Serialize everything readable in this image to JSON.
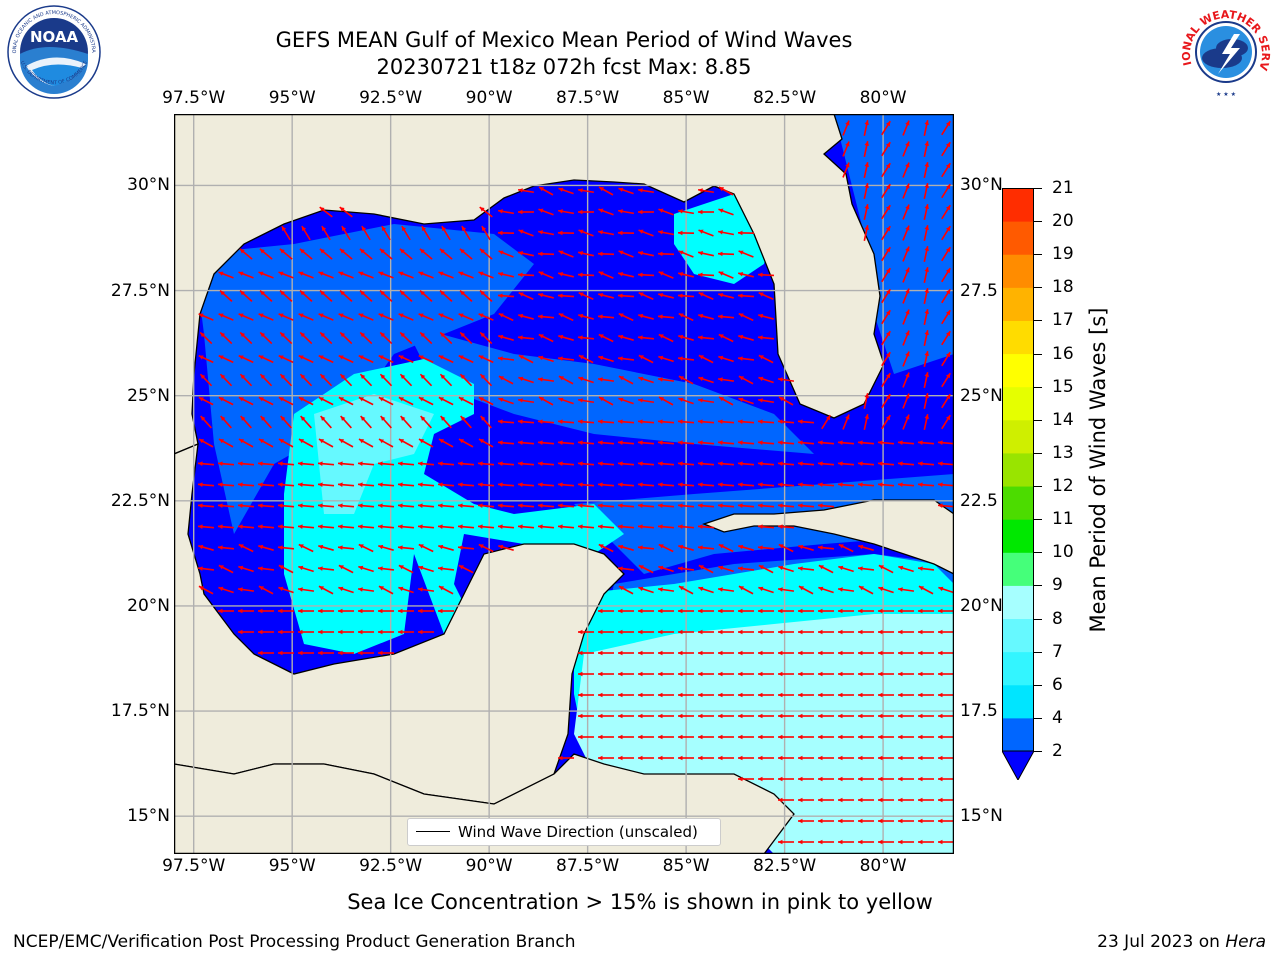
{
  "header": {
    "title_line1": "GEFS MEAN Gulf of Mexico Mean Period of Wind Waves",
    "title_line2": "20230721 t18z 072h fcst   Max: 8.85"
  },
  "logos": {
    "noaa_text": "NOAA",
    "noaa_ring_text": "NATIONAL OCEANIC AND ATMOSPHERIC ADMINISTRATION",
    "noaa_ring_text_bottom": "U.S. DEPARTMENT OF COMMERCE",
    "nws_ring_text": "NATIONAL WEATHER SERVICE"
  },
  "map": {
    "lon_ticks": [
      {
        "label": "97.5°W",
        "lon": -97.5
      },
      {
        "label": "95°W",
        "lon": -95
      },
      {
        "label": "92.5°W",
        "lon": -92.5
      },
      {
        "label": "90°W",
        "lon": -90
      },
      {
        "label": "87.5°W",
        "lon": -87.5
      },
      {
        "label": "85°W",
        "lon": -85
      },
      {
        "label": "82.5°W",
        "lon": -82.5
      },
      {
        "label": "80°W",
        "lon": -80
      }
    ],
    "lat_ticks_left": [
      {
        "label": "30°N",
        "lat": 30
      },
      {
        "label": "27.5°N",
        "lat": 27.5
      },
      {
        "label": "25°N",
        "lat": 25
      },
      {
        "label": "22.5°N",
        "lat": 22.5
      },
      {
        "label": "20°N",
        "lat": 20
      },
      {
        "label": "17.5°N",
        "lat": 17.5
      },
      {
        "label": "15°N",
        "lat": 15
      }
    ],
    "lat_ticks_right": [
      {
        "label": "30°N",
        "lat": 30
      },
      {
        "label": "27.5",
        "lat": 27.5
      },
      {
        "label": "25°N",
        "lat": 25
      },
      {
        "label": "22.5",
        "lat": 22.5
      },
      {
        "label": "20°N",
        "lat": 20
      },
      {
        "label": "17.5",
        "lat": 17.5
      },
      {
        "label": "15°N",
        "lat": 15
      }
    ],
    "extent": {
      "lon_min": -98,
      "lon_max": -78.2,
      "lat_min": 14.1,
      "lat_max": 31.7
    },
    "land_color": "#efecdc",
    "vector_color": "#ff0000",
    "legend_label": "Wind Wave Direction (unscaled)"
  },
  "colorbar": {
    "label": "Mean Period of Wind Waves [s]",
    "levels": [
      2,
      4,
      6,
      7,
      8,
      9,
      10,
      11,
      12,
      13,
      14,
      15,
      16,
      17,
      18,
      19,
      20,
      21
    ],
    "tick_labels": [
      "2",
      "4",
      "6",
      "7",
      "8",
      "9",
      "10",
      "11",
      "12",
      "13",
      "14",
      "15",
      "16",
      "17",
      "18",
      "19",
      "20",
      "21"
    ],
    "colors": [
      "#0066ff",
      "#00e5ff",
      "#33f5ff",
      "#66f9ff",
      "#a6ffff",
      "#45ff7a",
      "#00e800",
      "#4cdc00",
      "#99e400",
      "#cfef00",
      "#e5ff00",
      "#ffff00",
      "#ffdc00",
      "#ffb300",
      "#ff8c00",
      "#ff5a00",
      "#ff2d00",
      "#ff0000"
    ],
    "under_color": "#0000ff"
  },
  "caption": "Sea Ice Concentration > 15% is shown in pink to yellow",
  "footer": {
    "left": "NCEP/EMC/Verification Post Processing Product Generation Branch",
    "right_prefix": "23 Jul 2023 on ",
    "right_host": "Hera"
  }
}
